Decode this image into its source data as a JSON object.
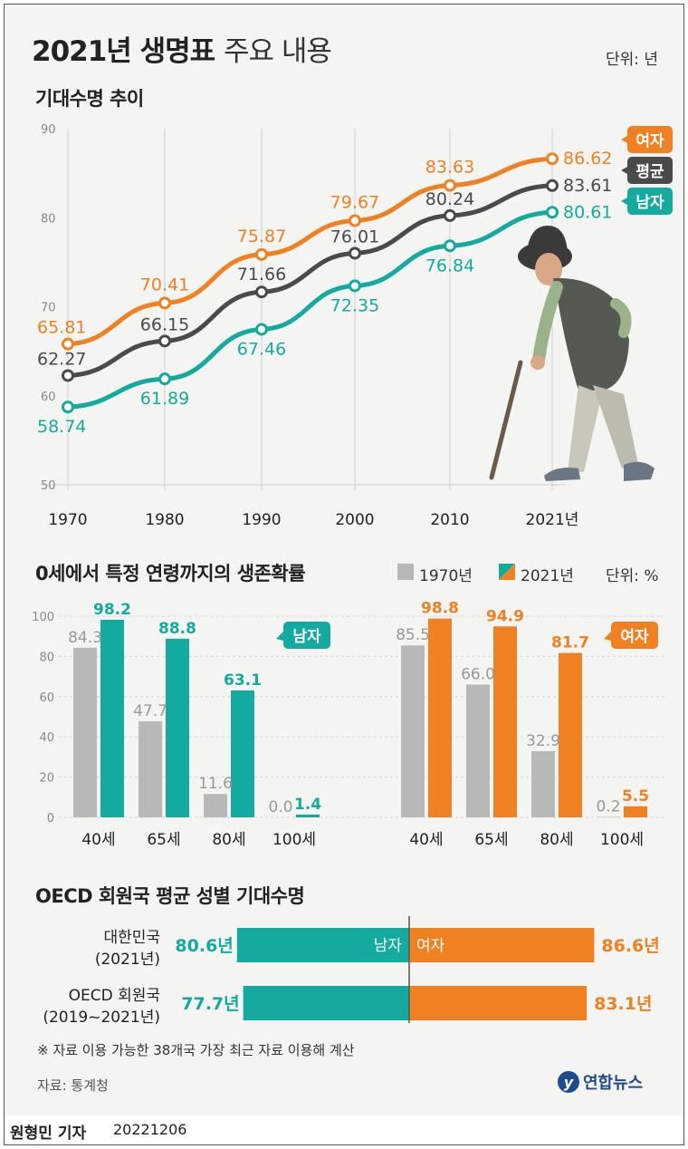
{
  "header": {
    "title_bold": "2021년 생명표",
    "title_light": "주요 내용",
    "unit": "단위: 년"
  },
  "section1": {
    "title": "기대수명 추이"
  },
  "section2": {
    "title": "0세에서 특정 연령까지의 생존확률",
    "legend_1970": "1970년",
    "legend_2021": "2021년",
    "unit": "단위: %"
  },
  "section3": {
    "title": "OECD 회원국 평균 성별 기대수명",
    "note": "※ 자료 이용 가능한 38개국 가장 최근 자료 이용해 계산"
  },
  "source": "자료: 통계청",
  "logo": "연합뉴스",
  "footer": {
    "reporter": "원형민 기자",
    "date": "20221206"
  },
  "colors": {
    "female": "#f08122",
    "average": "#4a4a4a",
    "male": "#14aaa0",
    "gray": "#b8b8b8"
  },
  "chart_data": [
    {
      "type": "line",
      "title": "기대수명 추이",
      "x": [
        "1970",
        "1980",
        "1990",
        "2000",
        "2010",
        "2021년"
      ],
      "ylim": [
        50,
        90
      ],
      "yticks": [
        50,
        60,
        70,
        80,
        90
      ],
      "grid": "vertical",
      "series": [
        {
          "name": "여자",
          "values": [
            65.81,
            70.41,
            75.87,
            79.67,
            83.63,
            86.62
          ]
        },
        {
          "name": "평균",
          "values": [
            62.27,
            66.15,
            71.66,
            76.01,
            80.24,
            83.61
          ]
        },
        {
          "name": "남자",
          "values": [
            58.74,
            61.89,
            67.46,
            72.35,
            76.84,
            80.61
          ]
        }
      ]
    },
    {
      "type": "bar",
      "title": "0세에서 특정 연령까지의 생존확률",
      "groups": [
        {
          "name": "남자",
          "categories": [
            "40세",
            "65세",
            "80세",
            "100세"
          ],
          "series": [
            {
              "name": "1970년",
              "values": [
                84.3,
                47.7,
                11.6,
                0.0
              ]
            },
            {
              "name": "2021년",
              "values": [
                98.2,
                88.8,
                63.1,
                1.4
              ]
            }
          ]
        },
        {
          "name": "여자",
          "categories": [
            "40세",
            "65세",
            "80세",
            "100세"
          ],
          "series": [
            {
              "name": "1970년",
              "values": [
                85.5,
                66.0,
                32.9,
                0.2
              ]
            },
            {
              "name": "2021년",
              "values": [
                98.8,
                94.9,
                81.7,
                5.5
              ]
            }
          ]
        }
      ],
      "ylim": [
        0,
        100
      ],
      "yticks": [
        0,
        20,
        40,
        60,
        80,
        100
      ]
    },
    {
      "type": "bar",
      "title": "OECD 회원국 평균 성별 기대수명",
      "rows": [
        {
          "label": "대한민국",
          "sublabel": "(2021년)",
          "male": "80.6년",
          "female": "86.6년",
          "male_value": 80.6,
          "female_value": 86.6
        },
        {
          "label": "OECD 회원국",
          "sublabel": "(2019~2021년)",
          "male": "77.7년",
          "female": "83.1년",
          "male_value": 77.7,
          "female_value": 83.1
        }
      ],
      "male_label": "남자",
      "female_label": "여자"
    }
  ]
}
